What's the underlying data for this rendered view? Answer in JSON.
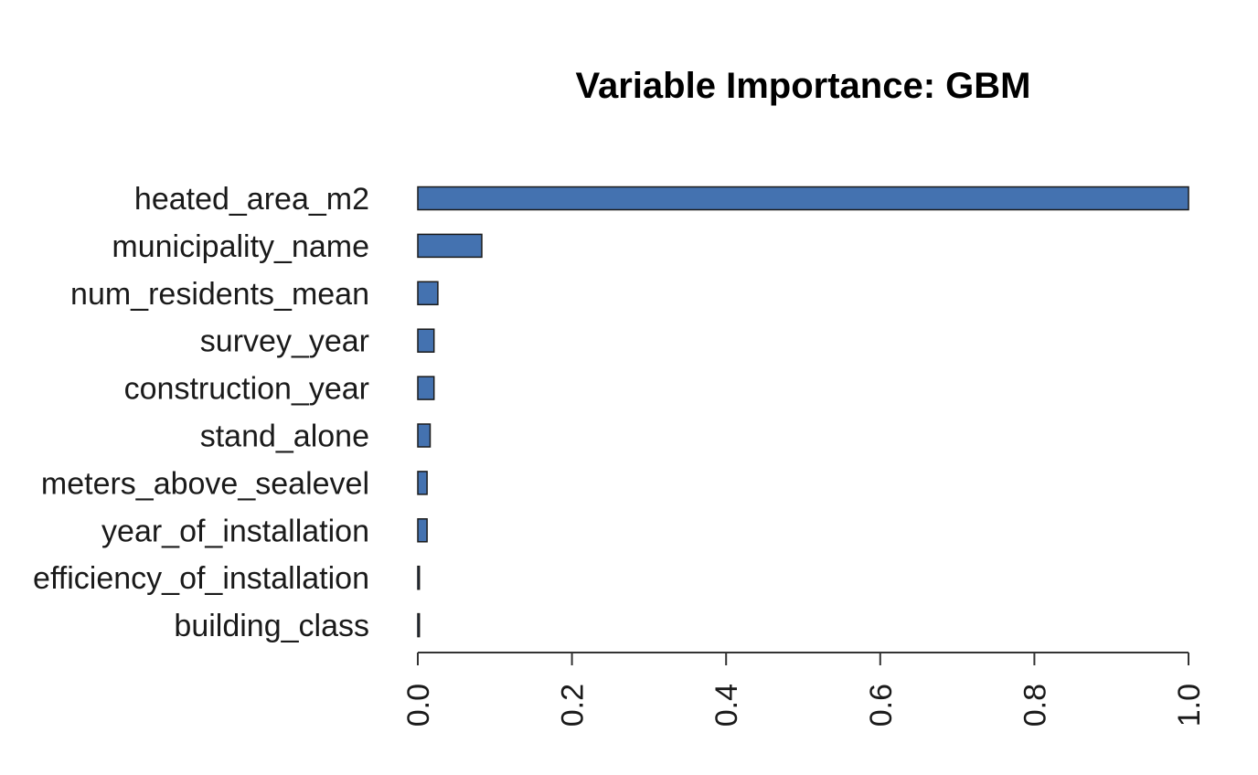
{
  "chart_data": {
    "type": "bar",
    "orientation": "horizontal",
    "title": "Variable Importance: GBM",
    "xlabel": "",
    "ylabel": "",
    "categories": [
      "heated_area_m2",
      "municipality_name",
      "num_residents_mean",
      "survey_year",
      "construction_year",
      "stand_alone",
      "meters_above_sealevel",
      "year_of_installation",
      "efficiency_of_installation",
      "building_class"
    ],
    "values": [
      1.0,
      0.083,
      0.026,
      0.021,
      0.021,
      0.016,
      0.012,
      0.012,
      0.002,
      0.002
    ],
    "xlim": [
      0,
      1
    ],
    "ticks": [
      "0.0",
      "0.2",
      "0.4",
      "0.6",
      "0.8",
      "1.0"
    ],
    "tick_values": [
      0,
      0.2,
      0.4,
      0.6,
      0.8,
      1.0
    ],
    "bar_color": "#4472b0",
    "grid": false,
    "legend": "none"
  }
}
